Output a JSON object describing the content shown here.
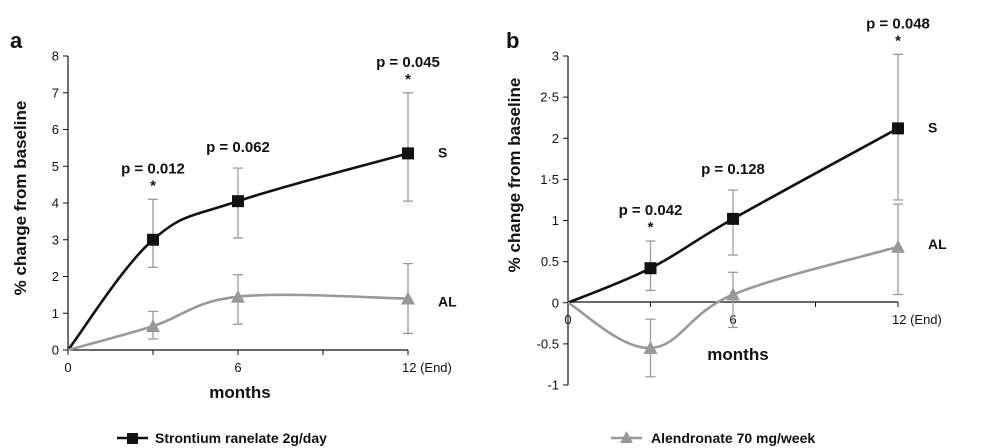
{
  "chart_data": [
    {
      "type": "line",
      "panel_label": "a",
      "xlabel": "months",
      "ylabel": "% change from baseline",
      "ylim": [
        0,
        8
      ],
      "xlim": [
        0,
        12
      ],
      "y_ticks": [
        "0",
        "1",
        "2",
        "3",
        "4",
        "5",
        "6",
        "7",
        "8"
      ],
      "x_tick_labels": [
        {
          "x": 0,
          "label": "0"
        },
        {
          "x": 6,
          "label": "6"
        },
        {
          "x": 12,
          "label": "12 (End)"
        }
      ],
      "series": [
        {
          "name": "S",
          "color": "#111111",
          "marker": "square",
          "x": [
            0,
            3,
            6,
            12
          ],
          "y": [
            0,
            3.0,
            4.05,
            5.35
          ],
          "err_low": [
            null,
            2.25,
            3.05,
            4.05
          ],
          "err_high": [
            null,
            4.1,
            4.95,
            7.0
          ]
        },
        {
          "name": "AL",
          "color": "#999999",
          "marker": "triangle",
          "x": [
            0,
            3,
            6,
            12
          ],
          "y": [
            0,
            0.65,
            1.45,
            1.4
          ],
          "err_low": [
            null,
            0.3,
            0.7,
            0.45
          ],
          "err_high": [
            null,
            1.05,
            2.05,
            2.35
          ]
        }
      ],
      "annotations": [
        {
          "x": 3,
          "text": "p = 0.012",
          "star": "*"
        },
        {
          "x": 6,
          "text": "p = 0.062",
          "star": ""
        },
        {
          "x": 12,
          "text": "p = 0.045",
          "star": "*"
        }
      ]
    },
    {
      "type": "line",
      "panel_label": "b",
      "xlabel": "months",
      "ylabel": "% change from baseline",
      "ylim": [
        -1,
        3
      ],
      "xlim": [
        0,
        12
      ],
      "y_ticks": [
        "-1",
        "-0.5",
        "0",
        "0.5",
        "1",
        "1·5",
        "2",
        "2·5",
        "3"
      ],
      "x_tick_labels": [
        {
          "x": 0,
          "label": "0"
        },
        {
          "x": 6,
          "label": "6"
        },
        {
          "x": 12,
          "label": "12 (End)"
        }
      ],
      "series": [
        {
          "name": "S",
          "color": "#111111",
          "marker": "square",
          "x": [
            0,
            3,
            6,
            12
          ],
          "y": [
            0,
            0.42,
            1.02,
            2.12
          ],
          "err_low": [
            null,
            0.15,
            0.58,
            1.25
          ],
          "err_high": [
            null,
            0.75,
            1.37,
            3.02
          ]
        },
        {
          "name": "AL",
          "color": "#999999",
          "marker": "triangle",
          "x": [
            0,
            3,
            6,
            12
          ],
          "y": [
            0,
            -0.55,
            0.1,
            0.68
          ],
          "err_low": [
            null,
            -0.9,
            -0.3,
            0.1
          ],
          "err_high": [
            null,
            -0.2,
            0.37,
            1.2
          ]
        }
      ],
      "annotations": [
        {
          "x": 3,
          "text": "p = 0.042",
          "star": "*"
        },
        {
          "x": 6,
          "text": "p = 0.128",
          "star": ""
        },
        {
          "x": 12,
          "text": "p = 0.048",
          "star": "*"
        }
      ]
    }
  ],
  "legend": [
    {
      "label": "Strontium ranelate 2g/day",
      "color": "#111111",
      "marker": "square"
    },
    {
      "label": "Alendronate 70 mg/week",
      "color": "#999999",
      "marker": "triangle"
    }
  ],
  "legend_placement": "bottom"
}
